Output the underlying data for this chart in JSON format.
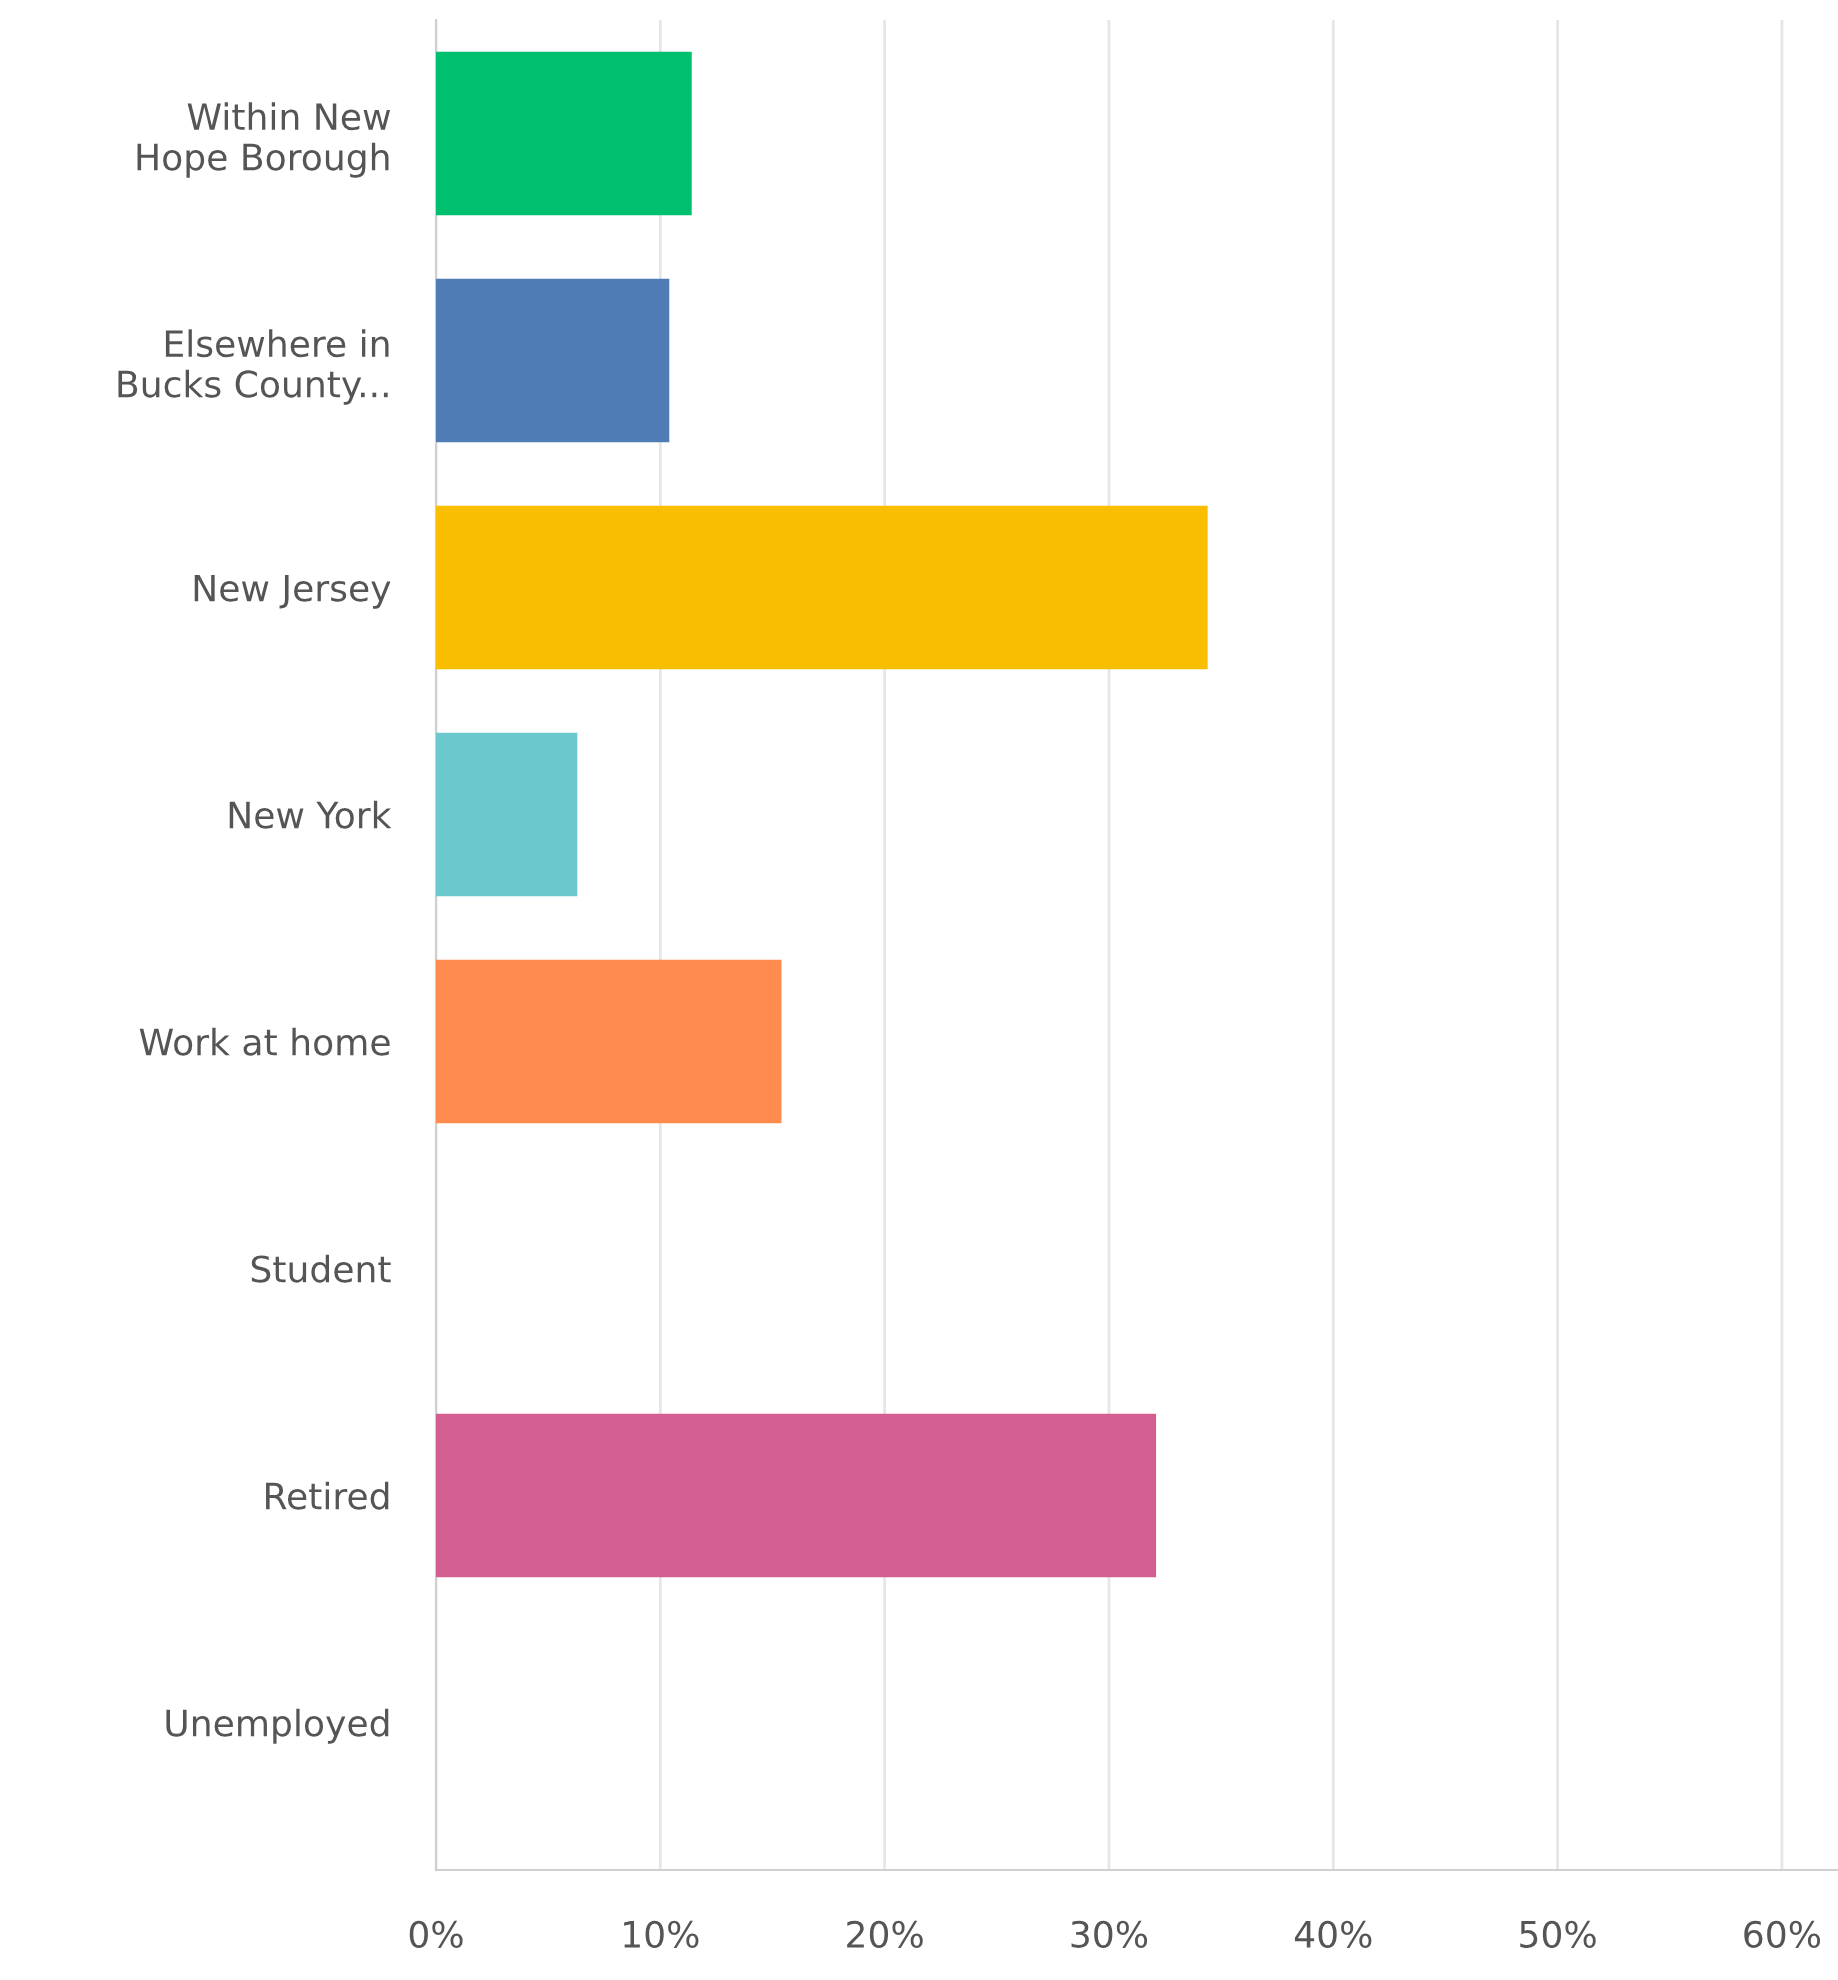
{
  "chart_data": {
    "type": "bar",
    "orientation": "horizontal",
    "categories": [
      "Within New\nHope Borough",
      "Elsewhere in\nBucks County...",
      "New Jersey",
      "New York",
      "Work at home",
      "Student",
      "Retired",
      "Unemployed"
    ],
    "values": [
      11.4,
      10.4,
      34.4,
      6.3,
      15.4,
      0,
      32.1,
      0
    ],
    "colors": [
      "#00bf6f",
      "#507cb6",
      "#f9be00",
      "#6bc8cd",
      "#ff8b4f",
      "#7f7ccf",
      "#d25f90",
      "#dee1e3"
    ],
    "xlim": [
      0,
      62.5
    ],
    "xticks": [
      {
        "value": 0,
        "label": "0%"
      },
      {
        "value": 10,
        "label": "10%"
      },
      {
        "value": 20,
        "label": "20%"
      },
      {
        "value": 30,
        "label": "30%"
      },
      {
        "value": 40,
        "label": "40%"
      },
      {
        "value": 50,
        "label": "50%"
      },
      {
        "value": 60,
        "label": "60%"
      }
    ],
    "grid": "x",
    "legend": false
  }
}
